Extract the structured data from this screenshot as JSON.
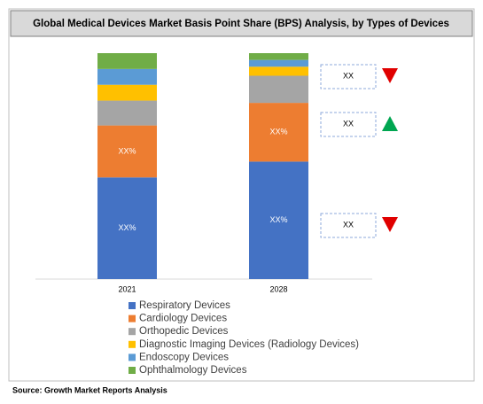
{
  "chart_data": {
    "type": "stacked_bar",
    "title": "Global Medical Devices Market Basis Point Share (BPS) Analysis, by Types of Devices",
    "categories": [
      "2021",
      "2028"
    ],
    "series": [
      {
        "name": "Respiratory Devices",
        "color": "#4472c4",
        "values": [
          45,
          52
        ],
        "value_labels": [
          "XX%",
          "XX%"
        ]
      },
      {
        "name": "Cardiology Devices",
        "color": "#ed7d31",
        "values": [
          23,
          26
        ],
        "value_labels": [
          "XX%",
          "XX%"
        ]
      },
      {
        "name": "Orthopedic Devices",
        "color": "#a5a5a5",
        "values": [
          11,
          12
        ]
      },
      {
        "name": "Diagnostic Imaging Devices (Radiology Devices)",
        "color": "#ffc000",
        "values": [
          7,
          4
        ]
      },
      {
        "name": "Endoscopy Devices",
        "color": "#5b9bd5",
        "values": [
          7,
          3
        ]
      },
      {
        "name": "Ophthalmology Devices",
        "color": "#70ad47",
        "values": [
          7,
          3
        ]
      }
    ],
    "annotations": [
      {
        "label": "XX",
        "direction": "down",
        "color": "#e00000"
      },
      {
        "label": "XX",
        "direction": "up",
        "color": "#00a651"
      },
      {
        "label": "XX",
        "direction": "down",
        "color": "#e00000"
      }
    ],
    "source": "Source: Growth Market Reports Analysis"
  }
}
